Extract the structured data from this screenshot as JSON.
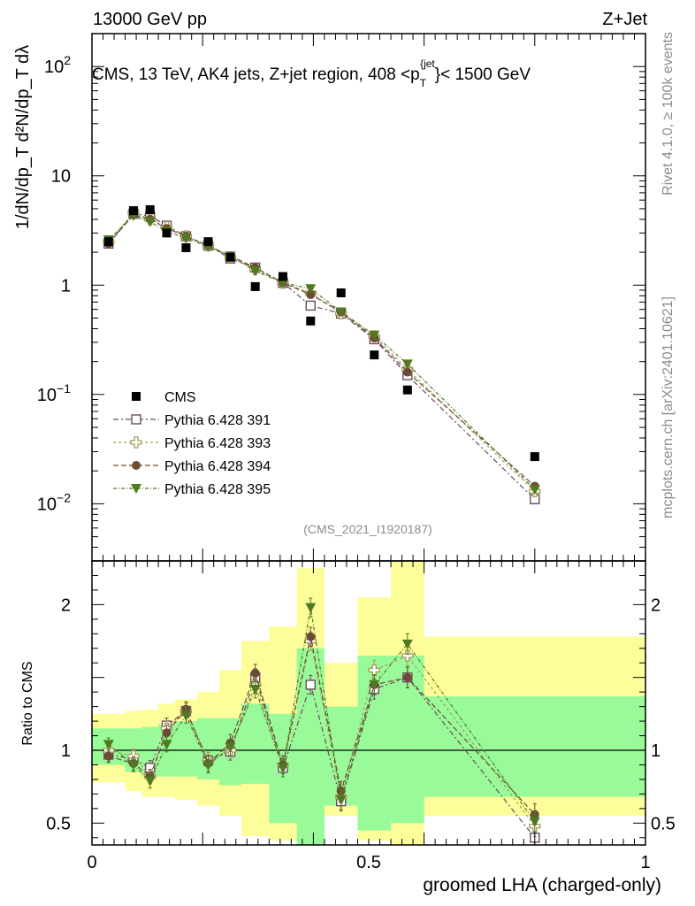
{
  "header": {
    "energy": "13000 GeV pp",
    "process": "Z+Jet"
  },
  "side_labels": {
    "rivet": "Rivet 4.1.0, ≥ 100k events",
    "mcplots": "mcplots.cern.ch [arXiv:2401.10621]"
  },
  "chart_data": {
    "type": "scatter",
    "title": "CMS, 13 TeV, AK4 jets, Z+jet region, 408 < p_T^{jet} < 1500 GeV",
    "title_parts": {
      "main": "CMS, 13 TeV, AK4 jets, Z+jet region, 408 <p",
      "sub": "T",
      "sup": "{jet",
      "tail": "}< 1500 GeV"
    },
    "analysis_id": "(CMS_2021_I1920187)",
    "xlabel": "groomed LHA (charged-only)",
    "ylabel": "1/dN/dp_T d²N/dp_T dλ",
    "ratio_ylabel": "Ratio to CMS",
    "xlim": [
      0,
      1
    ],
    "ylim": [
      0.003,
      200
    ],
    "ratio_ylim": [
      0.35,
      2.3
    ],
    "yscale": "log",
    "x_ticks": [
      {
        "v": 0,
        "label": "0"
      },
      {
        "v": 0.5,
        "label": "0.5"
      },
      {
        "v": 1,
        "label": "1"
      }
    ],
    "y_ticks": [
      {
        "v": 0.01,
        "base": "10",
        "exp": "−2"
      },
      {
        "v": 0.1,
        "base": "10",
        "exp": "−1"
      },
      {
        "v": 1,
        "base": "1",
        "exp": ""
      },
      {
        "v": 10,
        "base": "10",
        "exp": ""
      },
      {
        "v": 100,
        "base": "10",
        "exp": "2"
      }
    ],
    "ratio_ticks": [
      {
        "v": 0.5,
        "label": "0.5"
      },
      {
        "v": 1,
        "label": "1"
      },
      {
        "v": 2,
        "label": "2"
      }
    ],
    "x": [
      0.03,
      0.075,
      0.105,
      0.135,
      0.17,
      0.21,
      0.25,
      0.295,
      0.345,
      0.395,
      0.45,
      0.51,
      0.57,
      0.8
    ],
    "bin_edges": [
      0.0,
      0.06,
      0.09,
      0.12,
      0.15,
      0.19,
      0.23,
      0.27,
      0.32,
      0.37,
      0.42,
      0.48,
      0.54,
      0.6,
      1.0
    ],
    "data": {
      "name": "CMS",
      "values": [
        2.5,
        4.8,
        4.9,
        3.0,
        2.2,
        2.5,
        1.8,
        0.97,
        1.2,
        0.47,
        0.85,
        0.23,
        0.11,
        0.027
      ]
    },
    "bands": {
      "inner": [
        [
          0.9,
          1.15
        ],
        [
          0.85,
          1.15
        ],
        [
          0.82,
          1.16
        ],
        [
          0.82,
          1.18
        ],
        [
          0.82,
          1.2
        ],
        [
          0.8,
          1.22
        ],
        [
          0.76,
          1.22
        ],
        [
          0.77,
          1.32
        ],
        [
          0.5,
          1.25
        ],
        [
          0.3,
          1.7
        ],
        [
          0.62,
          1.3
        ],
        [
          0.45,
          1.65
        ],
        [
          0.5,
          1.65
        ],
        [
          0.68,
          1.37
        ]
      ],
      "outer": [
        [
          0.78,
          1.25
        ],
        [
          0.72,
          1.27
        ],
        [
          0.68,
          1.28
        ],
        [
          0.68,
          1.32
        ],
        [
          0.66,
          1.35
        ],
        [
          0.62,
          1.4
        ],
        [
          0.55,
          1.55
        ],
        [
          0.41,
          1.75
        ],
        [
          0.38,
          1.85
        ],
        [
          0.28,
          2.25
        ],
        [
          0.55,
          1.6
        ],
        [
          0.38,
          2.05
        ],
        [
          0.35,
          2.5
        ],
        [
          0.55,
          1.78
        ]
      ]
    },
    "series": [
      {
        "name": "Pythia 6.428 391",
        "color": "#6b4d5e",
        "marker": "open-square",
        "dash": "6,3,2,3",
        "values": [
          2.4,
          4.5,
          4.3,
          3.5,
          2.8,
          2.3,
          1.75,
          1.45,
          1.05,
          0.65,
          0.55,
          0.32,
          0.15,
          0.011
        ],
        "ratio": [
          0.97,
          0.94,
          0.88,
          1.17,
          1.27,
          0.93,
          0.99,
          1.5,
          0.88,
          1.45,
          0.65,
          1.42,
          1.5,
          0.4
        ]
      },
      {
        "name": "Pythia 6.428 393",
        "color": "#a89a5a",
        "marker": "open-cross",
        "dash": "3,3",
        "values": [
          2.5,
          4.6,
          4.0,
          3.4,
          2.8,
          2.3,
          1.8,
          1.4,
          1.05,
          0.85,
          0.55,
          0.34,
          0.17,
          0.013
        ],
        "ratio": [
          1.0,
          0.96,
          0.82,
          1.15,
          1.27,
          0.93,
          1.0,
          1.45,
          0.9,
          1.75,
          0.68,
          1.55,
          1.65,
          0.48
        ]
      },
      {
        "name": "Pythia 6.428 394",
        "color": "#6d4c36",
        "marker": "filled-circle",
        "dash": "6,3",
        "values": [
          2.4,
          4.4,
          4.0,
          3.3,
          2.8,
          2.3,
          1.85,
          1.45,
          1.05,
          0.82,
          0.57,
          0.33,
          0.16,
          0.0145
        ],
        "ratio": [
          0.96,
          0.91,
          0.82,
          1.12,
          1.28,
          0.91,
          1.05,
          1.53,
          0.9,
          1.78,
          0.72,
          1.45,
          1.5,
          0.56
        ]
      },
      {
        "name": "Pythia 6.428 395",
        "color": "#4f7a1f",
        "marker": "filled-triangle-down",
        "dash": "4,2,1,2",
        "values": [
          2.6,
          4.3,
          3.8,
          3.1,
          2.7,
          2.25,
          1.85,
          1.35,
          1.05,
          0.93,
          0.57,
          0.35,
          0.19,
          0.0135
        ],
        "ratio": [
          1.04,
          0.9,
          0.79,
          1.04,
          1.24,
          0.9,
          1.02,
          1.42,
          0.88,
          1.98,
          0.66,
          1.45,
          1.73,
          0.51
        ]
      }
    ]
  }
}
